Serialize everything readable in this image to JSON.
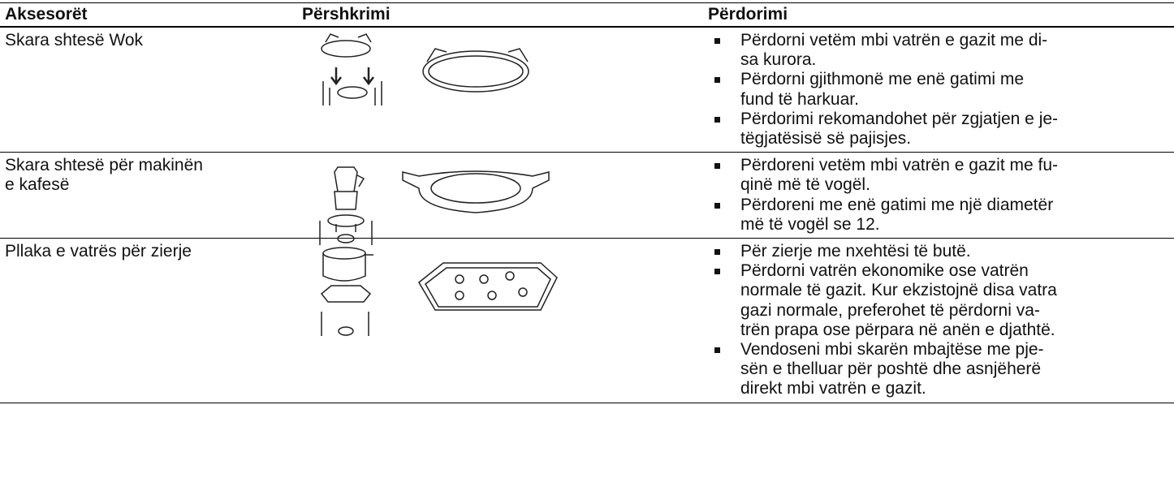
{
  "table": {
    "header": [
      "Aksesorët",
      "Përshkrimi",
      "Përdorimi"
    ],
    "rows": [
      {
        "name": [
          "Skara shtesë Wok"
        ],
        "bullets": [
          [
            "Përdorni vetëm mbi vatrën e gazit me di-",
            "sa kurora."
          ],
          [
            "Përdorni gjithmonë me enë gatimi me",
            "fund të harkuar."
          ],
          [
            "Përdorimi rekomandohet për zgjatjen e je-",
            "tëgjatësisë së pajisjes."
          ]
        ]
      },
      {
        "name": [
          "Skara shtesë për makinën",
          "e kafesë"
        ],
        "bullets": [
          [
            "Përdoreni vetëm mbi vatrën e gazit me fu-",
            "qinë më të vogël."
          ],
          [
            "Përdoreni me enë gatimi me një diametër",
            "më të vogël se 12."
          ]
        ]
      },
      {
        "name": [
          "Pllaka e vatrës për zierje"
        ],
        "bullets": [
          [
            "Për zierje me nxehtësi të butë."
          ],
          [
            "Përdorni vatrën ekonomike ose vatrën",
            "normale të gazit. Kur ekzistojnë disa vatra",
            "gazi normale, preferohet të përdorni va-",
            "trën prapa ose përpara në anën e djathtë."
          ],
          [
            "Vendoseni mbi skarën mbajtëse me pje-",
            "sën e thelluar për poshtë dhe asnjëherë",
            "direkt mbi vatrën e gazit."
          ]
        ]
      }
    ]
  }
}
